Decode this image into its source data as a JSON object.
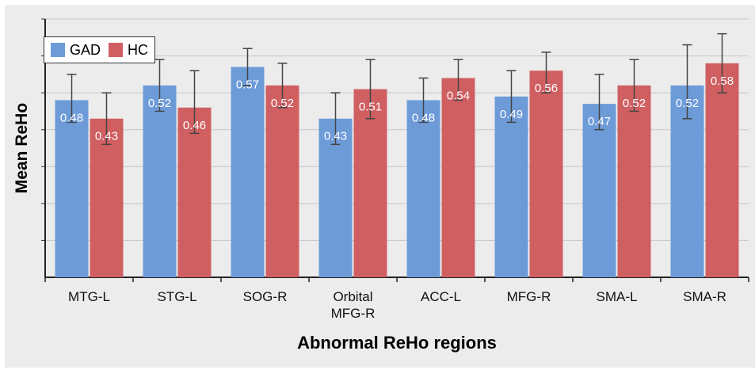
{
  "chart_data": {
    "type": "bar",
    "title": "",
    "xlabel": "Abnormal ReHo regions",
    "ylabel": "Mean ReHo",
    "categories": [
      "MTG-L",
      "STG-L",
      "SOG-R",
      "Orbital MFG-R",
      "ACC-L",
      "MFG-R",
      "SMA-L",
      "SMA-R"
    ],
    "category_lines": [
      [
        "MTG-L"
      ],
      [
        "STG-L"
      ],
      [
        "SOG-R"
      ],
      [
        "Orbital",
        "MFG-R"
      ],
      [
        "ACC-L"
      ],
      [
        "MFG-R"
      ],
      [
        "SMA-L"
      ],
      [
        "SMA-R"
      ]
    ],
    "ylim": [
      0,
      0.7
    ],
    "grid": true,
    "legend_position": "top-left",
    "series": [
      {
        "name": "GAD",
        "color": "#6d9bd8",
        "values": [
          0.48,
          0.52,
          0.57,
          0.43,
          0.48,
          0.49,
          0.47,
          0.52
        ],
        "labels": [
          "0.48",
          "0.52",
          "0.57",
          "0.43",
          "0.48",
          "0.49",
          "0.47",
          "0.52"
        ],
        "err_low": [
          0.42,
          0.45,
          0.52,
          0.36,
          0.42,
          0.42,
          0.4,
          0.43
        ],
        "err_high": [
          0.55,
          0.59,
          0.62,
          0.5,
          0.54,
          0.56,
          0.55,
          0.63
        ]
      },
      {
        "name": "HC",
        "color": "#d05f62",
        "values": [
          0.43,
          0.46,
          0.52,
          0.51,
          0.54,
          0.56,
          0.52,
          0.58
        ],
        "labels": [
          "0.43",
          "0.46",
          "0.52",
          "0.51",
          "0.54",
          "0.56",
          "0.52",
          "0.58"
        ],
        "err_low": [
          0.36,
          0.39,
          0.46,
          0.43,
          0.48,
          0.5,
          0.45,
          0.5
        ],
        "err_high": [
          0.5,
          0.56,
          0.58,
          0.59,
          0.59,
          0.61,
          0.59,
          0.66
        ]
      }
    ]
  }
}
